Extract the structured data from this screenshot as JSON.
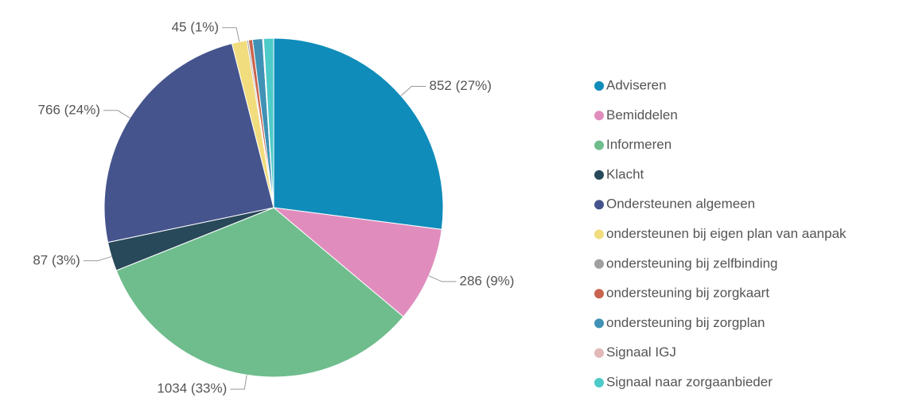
{
  "chart_data": {
    "type": "pie",
    "categories": [
      "Adviseren",
      "Bemiddelen",
      "Informeren",
      "Klacht",
      "Ondersteunen algemeen",
      "ondersteunen bij eigen plan van aanpak",
      "ondersteuning bij zelfbinding",
      "ondersteuning bij zorgkaart",
      "ondersteuning bij zorgplan",
      "Signaal IGJ",
      "Signaal naar zorgaanbieder"
    ],
    "values": [
      852,
      286,
      1034,
      87,
      766,
      45,
      5,
      12,
      30,
      3,
      30
    ],
    "value_labels": [
      "852 (27%)",
      "286 (9%)",
      "1034 (33%)",
      "87 (3%)",
      "766 (24%)",
      "45 (1%)",
      null,
      null,
      null,
      null,
      null
    ],
    "colors": [
      "#0f8cba",
      "#e08dbe",
      "#6fbd8d",
      "#28495a",
      "#45548c",
      "#f1dc7e",
      "#a0a0a0",
      "#c8644e",
      "#3f92b5",
      "#e3b8b8",
      "#4dcbc8"
    ],
    "legend": "right"
  }
}
